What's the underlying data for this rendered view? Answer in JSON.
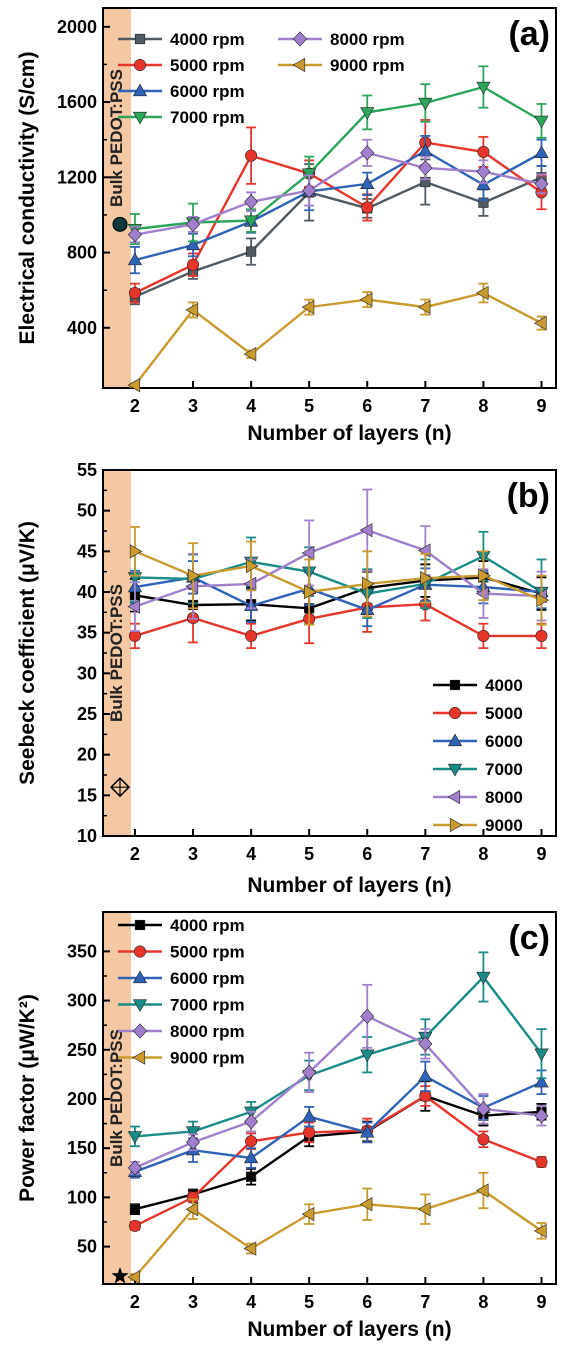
{
  "figure": {
    "panels": [
      {
        "letter": "(a)",
        "bulk_label": "Bulk PEDOT:PSS",
        "bulk_marker": "sphere"
      },
      {
        "letter": "(b)",
        "bulk_label": "Bulk PEDOT:PSS",
        "bulk_marker": "diamond-cross"
      },
      {
        "letter": "(c)",
        "bulk_label": "Bulk PEDOT:PSS",
        "bulk_marker": "star"
      }
    ]
  },
  "colors": {
    "4000": "#505a62",
    "4000_black": "#000000",
    "5000": "#e8352b",
    "6000": "#2f63b8",
    "7000": "#2ba55a",
    "7000_teal": "#1a8c88",
    "8000": "#a17fcc",
    "9000": "#c99a2e",
    "bulk_band": "#f4c8a3"
  },
  "chart_data": [
    {
      "type": "line",
      "title": "",
      "panel": "(a)",
      "xlabel": "Number of layers (n)",
      "ylabel": "Electrical conductivity (S/cm)",
      "x": [
        2,
        3,
        4,
        5,
        6,
        7,
        8,
        9
      ],
      "xlim": [
        1.45,
        9.25
      ],
      "ylim": [
        80,
        2100
      ],
      "yticks": [
        400,
        800,
        1200,
        1600,
        2000
      ],
      "xticks": [
        2,
        3,
        4,
        5,
        6,
        7,
        8,
        9
      ],
      "legend": "top-left, two columns",
      "grid": false,
      "series": [
        {
          "name": "4000 rpm",
          "marker": "square",
          "color": "#505a62",
          "values": [
            565,
            700,
            805,
            1120,
            1035,
            1175,
            1065,
            1200
          ],
          "err": [
            40,
            40,
            70,
            150,
            50,
            120,
            70,
            60
          ]
        },
        {
          "name": "5000 rpm",
          "marker": "circle",
          "color": "#e8352b",
          "values": [
            585,
            735,
            1315,
            1220,
            1040,
            1385,
            1335,
            1120
          ],
          "err": [
            50,
            60,
            150,
            70,
            70,
            120,
            80,
            90
          ]
        },
        {
          "name": "6000 rpm",
          "marker": "triangle-up",
          "color": "#2f63b8",
          "values": [
            760,
            840,
            965,
            1125,
            1165,
            1340,
            1160,
            1330
          ],
          "err": [
            70,
            60,
            60,
            100,
            60,
            80,
            80,
            70
          ]
        },
        {
          "name": "7000 rpm",
          "marker": "triangle-down",
          "color": "#2ba55a",
          "values": [
            925,
            960,
            970,
            1220,
            1545,
            1595,
            1680,
            1500
          ],
          "err": [
            80,
            100,
            60,
            90,
            90,
            100,
            110,
            90
          ]
        },
        {
          "name": "8000 rpm",
          "marker": "diamond",
          "color": "#a17fcc",
          "values": [
            895,
            950,
            1070,
            1130,
            1330,
            1250,
            1230,
            1165
          ],
          "err": [
            40,
            40,
            50,
            80,
            70,
            60,
            60,
            50
          ]
        },
        {
          "name": "9000 rpm",
          "marker": "triangle-left",
          "color": "#c99a2e",
          "values": [
            95,
            495,
            260,
            510,
            550,
            510,
            585,
            425
          ],
          "err": [
            10,
            40,
            20,
            40,
            40,
            40,
            50,
            35
          ]
        }
      ],
      "bulk_value": 950
    },
    {
      "type": "line",
      "title": "",
      "panel": "(b)",
      "xlabel": "Number of layers (n)",
      "ylabel": "Seebeck coefficient (μV/K)",
      "x": [
        2,
        3,
        4,
        5,
        6,
        7,
        8,
        9
      ],
      "xlim": [
        1.45,
        9.25
      ],
      "ylim": [
        10,
        55
      ],
      "yticks": [
        10,
        15,
        20,
        25,
        30,
        35,
        40,
        45,
        50,
        55
      ],
      "xticks": [
        2,
        3,
        4,
        5,
        6,
        7,
        8,
        9
      ],
      "legend": "bottom-right",
      "grid": false,
      "series": [
        {
          "name": "4000",
          "marker": "square",
          "color": "#000000",
          "values": [
            39.6,
            38.4,
            38.5,
            38.0,
            40.5,
            41.4,
            41.8,
            39.8
          ],
          "err": [
            2,
            2,
            2,
            2,
            2,
            2,
            2,
            2
          ]
        },
        {
          "name": "5000",
          "marker": "circle",
          "color": "#e8352b",
          "values": [
            34.6,
            36.8,
            34.6,
            36.7,
            38.1,
            38.5,
            34.6,
            34.6
          ],
          "err": [
            1.5,
            3,
            1.5,
            3,
            3,
            2,
            1.5,
            1.5
          ]
        },
        {
          "name": "6000",
          "marker": "triangle-up",
          "color": "#2f63b8",
          "values": [
            40.6,
            41.8,
            38.3,
            40.4,
            37.8,
            40.9,
            40.6,
            40.0
          ],
          "err": [
            2,
            2,
            2,
            2,
            2,
            2,
            2,
            2
          ]
        },
        {
          "name": "7000",
          "marker": "triangle-down",
          "color": "#1a8c88",
          "values": [
            41.8,
            41.6,
            43.7,
            42.5,
            39.8,
            41.0,
            44.4,
            40.0
          ],
          "err": [
            3,
            3,
            3,
            3,
            3,
            3,
            3,
            4
          ]
        },
        {
          "name": "8000",
          "marker": "triangle-left",
          "color": "#a17fcc",
          "values": [
            38.2,
            40.7,
            41.0,
            44.8,
            47.6,
            45.1,
            39.8,
            39.5
          ],
          "err": [
            3,
            4,
            3,
            4,
            5,
            3,
            3,
            3
          ]
        },
        {
          "name": "9000",
          "marker": "triangle-right",
          "color": "#c99a2e",
          "values": [
            45.0,
            42.0,
            43.2,
            40.0,
            41.0,
            41.7,
            42.0,
            39.0
          ],
          "err": [
            3,
            4,
            3,
            4,
            4,
            3,
            3,
            3
          ]
        }
      ],
      "bulk_value": 16
    },
    {
      "type": "line",
      "title": "",
      "panel": "(c)",
      "xlabel": "Number of layers (n)",
      "ylabel": "Power factor (μW/K²)",
      "x": [
        2,
        3,
        4,
        5,
        6,
        7,
        8,
        9
      ],
      "xlim": [
        1.45,
        9.25
      ],
      "ylim": [
        12,
        390
      ],
      "yticks": [
        50,
        100,
        150,
        200,
        250,
        300,
        350
      ],
      "xticks": [
        2,
        3,
        4,
        5,
        6,
        7,
        8,
        9
      ],
      "legend": "top-left",
      "grid": false,
      "series": [
        {
          "name": "4000 rpm",
          "marker": "square",
          "color": "#000000",
          "values": [
            88,
            103,
            121,
            162,
            167,
            203,
            183,
            187
          ],
          "err": [
            5,
            5,
            8,
            10,
            10,
            15,
            10,
            8
          ]
        },
        {
          "name": "5000 rpm",
          "marker": "circle",
          "color": "#e8352b",
          "values": [
            71,
            100,
            157,
            166,
            168,
            203,
            159,
            136
          ],
          "err": [
            4,
            5,
            8,
            10,
            12,
            10,
            8,
            5
          ]
        },
        {
          "name": "6000 rpm",
          "marker": "triangle-up",
          "color": "#2f63b8",
          "values": [
            126,
            148,
            140,
            182,
            166,
            223,
            191,
            217
          ],
          "err": [
            6,
            12,
            10,
            10,
            10,
            15,
            12,
            12
          ]
        },
        {
          "name": "7000 rpm",
          "marker": "triangle-down",
          "color": "#1a8c88",
          "values": [
            162,
            167,
            187,
            224,
            245,
            263,
            324,
            246
          ],
          "err": [
            10,
            10,
            10,
            15,
            18,
            18,
            25,
            25
          ]
        },
        {
          "name": "8000 rpm",
          "marker": "diamond",
          "color": "#a17fcc",
          "values": [
            130,
            156,
            177,
            227,
            284,
            256,
            190,
            183
          ],
          "err": [
            6,
            8,
            10,
            20,
            32,
            15,
            15,
            10
          ]
        },
        {
          "name": "9000 rpm",
          "marker": "triangle-left",
          "color": "#c99a2e",
          "values": [
            19,
            88,
            48,
            83,
            93,
            88,
            107,
            66
          ],
          "err": [
            3,
            10,
            5,
            10,
            16,
            15,
            18,
            8
          ]
        }
      ],
      "bulk_value": 20
    }
  ]
}
